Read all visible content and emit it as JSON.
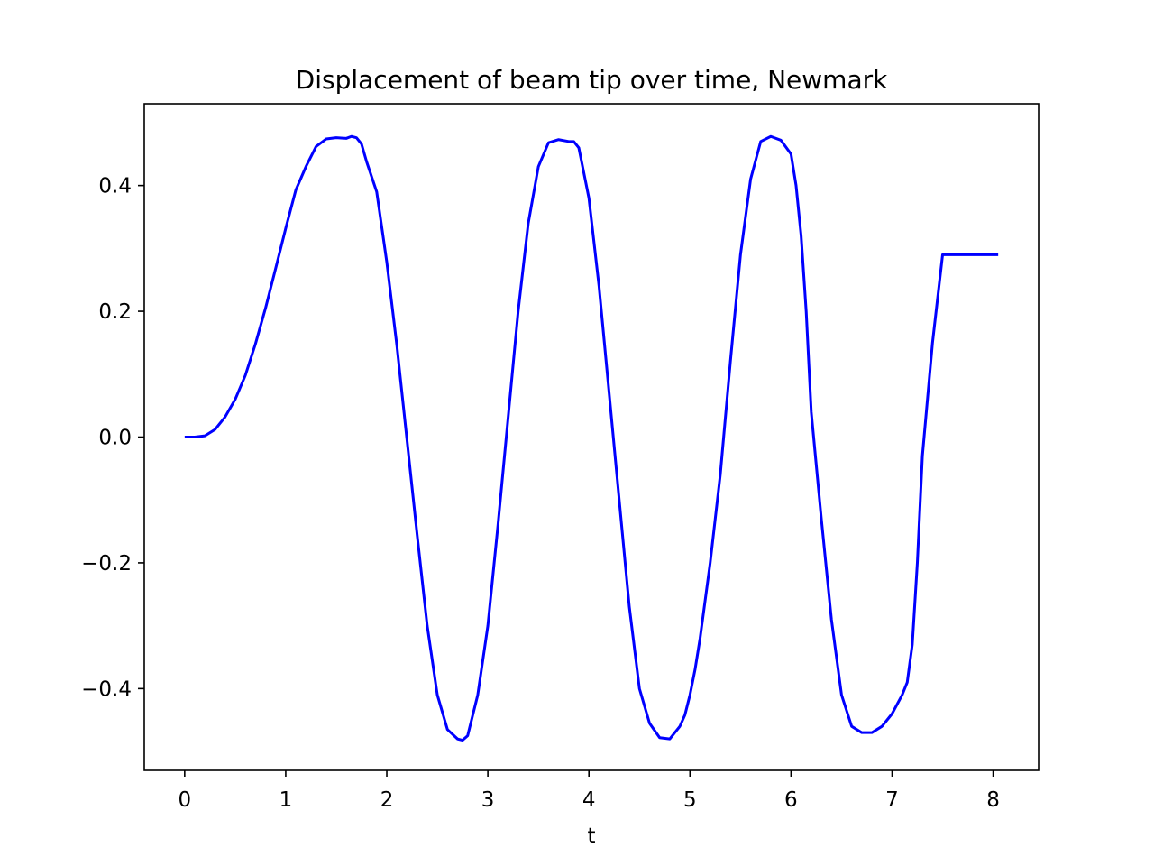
{
  "chart_data": {
    "type": "line",
    "title": "Displacement of beam tip over time, Newmark",
    "xlabel": "t",
    "ylabel": "",
    "xlim": [
      -0.4,
      8.45
    ],
    "ylim": [
      -0.53,
      0.53
    ],
    "xticks": [
      0,
      1,
      2,
      3,
      4,
      5,
      6,
      7,
      8
    ],
    "xtick_labels": [
      "0",
      "1",
      "2",
      "3",
      "4",
      "5",
      "6",
      "7",
      "8"
    ],
    "yticks": [
      0.4,
      0.2,
      0.0,
      -0.2,
      -0.4
    ],
    "ytick_labels": [
      "0.4",
      "0.2",
      "0.0",
      "−0.2",
      "−0.4"
    ],
    "grid": false,
    "legend": "none",
    "series": [
      {
        "color": "#0000ff",
        "x": [
          0.0,
          0.1,
          0.2,
          0.3,
          0.4,
          0.5,
          0.6,
          0.7,
          0.8,
          0.9,
          1.0,
          1.1,
          1.2,
          1.3,
          1.4,
          1.5,
          1.6,
          1.65,
          1.7,
          1.75,
          1.8,
          1.9,
          2.0,
          2.1,
          2.2,
          2.3,
          2.4,
          2.5,
          2.6,
          2.7,
          2.75,
          2.8,
          2.9,
          3.0,
          3.1,
          3.2,
          3.3,
          3.4,
          3.5,
          3.6,
          3.7,
          3.8,
          3.85,
          3.9,
          4.0,
          4.1,
          4.2,
          4.3,
          4.4,
          4.5,
          4.6,
          4.7,
          4.8,
          4.9,
          4.95,
          5.0,
          5.05,
          5.1,
          5.2,
          5.3,
          5.4,
          5.5,
          5.6,
          5.7,
          5.8,
          5.9,
          6.0,
          6.05,
          6.1,
          6.15,
          6.2,
          6.3,
          6.4,
          6.5,
          6.6,
          6.7,
          6.8,
          6.9,
          7.0,
          7.1,
          7.15,
          7.2,
          7.25,
          7.3,
          7.4,
          7.5,
          7.6,
          7.7,
          7.8,
          7.9,
          8.0,
          8.05
        ],
        "y": [
          0.0,
          0.0,
          0.002,
          0.012,
          0.032,
          0.06,
          0.098,
          0.148,
          0.205,
          0.268,
          0.332,
          0.393,
          0.43,
          0.462,
          0.474,
          0.476,
          0.475,
          0.478,
          0.476,
          0.466,
          0.438,
          0.39,
          0.278,
          0.145,
          -0.005,
          -0.155,
          -0.3,
          -0.41,
          -0.465,
          -0.48,
          -0.482,
          -0.475,
          -0.41,
          -0.3,
          -0.14,
          0.03,
          0.2,
          0.34,
          0.43,
          0.468,
          0.473,
          0.47,
          0.47,
          0.46,
          0.38,
          0.24,
          0.07,
          -0.1,
          -0.27,
          -0.4,
          -0.455,
          -0.478,
          -0.48,
          -0.46,
          -0.442,
          -0.41,
          -0.37,
          -0.32,
          -0.2,
          -0.06,
          0.12,
          0.29,
          0.41,
          0.47,
          0.478,
          0.472,
          0.45,
          0.4,
          0.32,
          0.2,
          0.04,
          -0.13,
          -0.29,
          -0.41,
          -0.46,
          -0.47,
          -0.47,
          -0.46,
          -0.44,
          -0.41,
          -0.39,
          -0.33,
          -0.2,
          -0.03,
          0.15,
          0.29,
          0.29,
          0.29,
          0.29,
          0.29,
          0.29,
          0.29
        ]
      }
    ]
  }
}
